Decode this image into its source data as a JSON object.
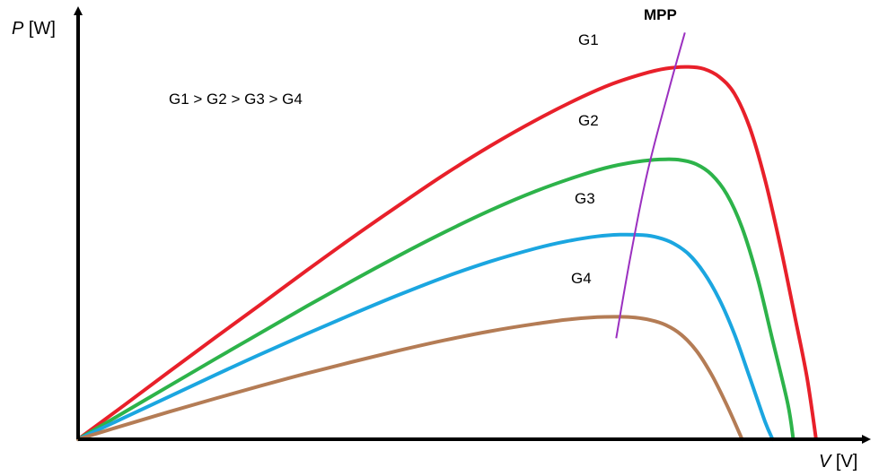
{
  "chart_data": {
    "type": "line",
    "xlabel": {
      "var": "V",
      "unit": " [V]"
    },
    "ylabel": {
      "var": "P",
      "unit": " [W]"
    },
    "xlim": [
      0,
      1
    ],
    "ylim": [
      0,
      1
    ],
    "grid": false,
    "annotation": "G1 > G2 > G3 > G4",
    "mpp_label": "MPP",
    "mpp_color": "#9B30C0",
    "series": [
      {
        "name": "G1",
        "color": "#E8202A",
        "points": [
          [
            0,
            0
          ],
          [
            0.06,
            0.082
          ],
          [
            0.12,
            0.165
          ],
          [
            0.18,
            0.247
          ],
          [
            0.24,
            0.328
          ],
          [
            0.3,
            0.41
          ],
          [
            0.36,
            0.49
          ],
          [
            0.42,
            0.567
          ],
          [
            0.48,
            0.642
          ],
          [
            0.54,
            0.711
          ],
          [
            0.6,
            0.774
          ],
          [
            0.66,
            0.83
          ],
          [
            0.7,
            0.862
          ],
          [
            0.74,
            0.886
          ],
          [
            0.77,
            0.899
          ],
          [
            0.8,
            0.903
          ],
          [
            0.82,
            0.898
          ],
          [
            0.84,
            0.879
          ],
          [
            0.86,
            0.838
          ],
          [
            0.88,
            0.756
          ],
          [
            0.9,
            0.63
          ],
          [
            0.92,
            0.47
          ],
          [
            0.94,
            0.29
          ],
          [
            0.955,
            0.15
          ],
          [
            0.967,
            0
          ]
        ]
      },
      {
        "name": "G2",
        "color": "#2DB34A",
        "points": [
          [
            0,
            0
          ],
          [
            0.06,
            0.065
          ],
          [
            0.12,
            0.13
          ],
          [
            0.18,
            0.195
          ],
          [
            0.24,
            0.259
          ],
          [
            0.3,
            0.323
          ],
          [
            0.36,
            0.385
          ],
          [
            0.42,
            0.445
          ],
          [
            0.48,
            0.502
          ],
          [
            0.54,
            0.555
          ],
          [
            0.6,
            0.602
          ],
          [
            0.66,
            0.641
          ],
          [
            0.7,
            0.662
          ],
          [
            0.74,
            0.675
          ],
          [
            0.77,
            0.679
          ],
          [
            0.79,
            0.677
          ],
          [
            0.81,
            0.667
          ],
          [
            0.83,
            0.642
          ],
          [
            0.85,
            0.594
          ],
          [
            0.87,
            0.513
          ],
          [
            0.89,
            0.393
          ],
          [
            0.91,
            0.24
          ],
          [
            0.93,
            0.085
          ],
          [
            0.937,
            0
          ]
        ]
      },
      {
        "name": "G3",
        "color": "#1BA6E0",
        "points": [
          [
            0,
            0
          ],
          [
            0.06,
            0.052
          ],
          [
            0.12,
            0.104
          ],
          [
            0.18,
            0.156
          ],
          [
            0.24,
            0.207
          ],
          [
            0.3,
            0.256
          ],
          [
            0.36,
            0.304
          ],
          [
            0.42,
            0.35
          ],
          [
            0.48,
            0.393
          ],
          [
            0.54,
            0.431
          ],
          [
            0.6,
            0.463
          ],
          [
            0.64,
            0.48
          ],
          [
            0.68,
            0.492
          ],
          [
            0.71,
            0.496
          ],
          [
            0.74,
            0.495
          ],
          [
            0.76,
            0.489
          ],
          [
            0.78,
            0.475
          ],
          [
            0.8,
            0.449
          ],
          [
            0.82,
            0.404
          ],
          [
            0.84,
            0.34
          ],
          [
            0.86,
            0.255
          ],
          [
            0.88,
            0.15
          ],
          [
            0.9,
            0.043
          ],
          [
            0.91,
            0
          ]
        ]
      },
      {
        "name": "G4",
        "color": "#B47C55",
        "points": [
          [
            0,
            0
          ],
          [
            0.06,
            0.034
          ],
          [
            0.12,
            0.067
          ],
          [
            0.18,
            0.099
          ],
          [
            0.24,
            0.13
          ],
          [
            0.3,
            0.16
          ],
          [
            0.36,
            0.188
          ],
          [
            0.42,
            0.215
          ],
          [
            0.48,
            0.24
          ],
          [
            0.54,
            0.262
          ],
          [
            0.6,
            0.28
          ],
          [
            0.64,
            0.29
          ],
          [
            0.68,
            0.296
          ],
          [
            0.71,
            0.297
          ],
          [
            0.73,
            0.295
          ],
          [
            0.75,
            0.289
          ],
          [
            0.77,
            0.277
          ],
          [
            0.79,
            0.254
          ],
          [
            0.81,
            0.215
          ],
          [
            0.83,
            0.157
          ],
          [
            0.85,
            0.083
          ],
          [
            0.87,
            0
          ]
        ]
      }
    ],
    "mpp_line": [
      [
        0.705,
        0.245
      ],
      [
        0.723,
        0.435
      ],
      [
        0.745,
        0.64
      ],
      [
        0.773,
        0.84
      ],
      [
        0.795,
        0.986
      ]
    ]
  }
}
